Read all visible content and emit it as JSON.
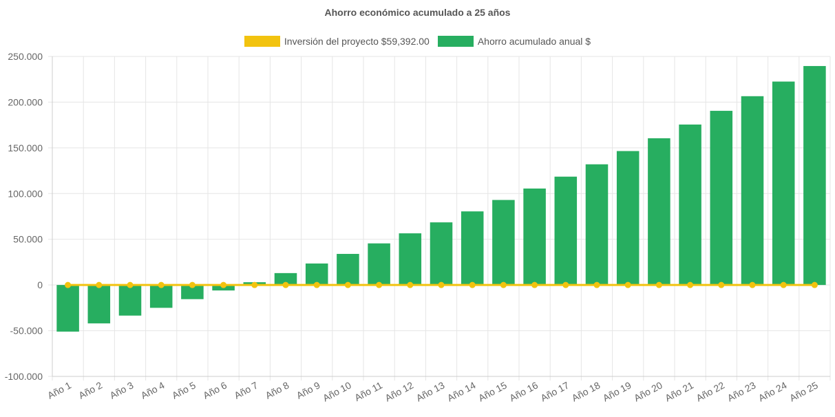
{
  "chart_data": {
    "type": "bar",
    "title": "Ahorro económico acumulado a 25 años",
    "categories": [
      "Año 1",
      "Año 2",
      "Año 3",
      "Año 4",
      "Año 5",
      "Año 6",
      "Año 7",
      "Año 8",
      "Año 9",
      "Año 10",
      "Año 11",
      "Año 12",
      "Año 13",
      "Año 14",
      "Año 15",
      "Año 16",
      "Año 17",
      "Año 18",
      "Año 19",
      "Año 20",
      "Año 21",
      "Año 22",
      "Año 23",
      "Año 24",
      "Año 25"
    ],
    "series": [
      {
        "name": "Inversión del proyecto $59,392.00",
        "type": "line",
        "color": "#f2c30f",
        "values": [
          0,
          0,
          0,
          0,
          0,
          0,
          0,
          0,
          0,
          0,
          0,
          0,
          0,
          0,
          0,
          0,
          0,
          0,
          0,
          0,
          0,
          0,
          0,
          0,
          0
        ]
      },
      {
        "name": "Ahorro acumulado anual $",
        "type": "bar",
        "color": "#27ae60",
        "values": [
          -51000,
          -42000,
          -33500,
          -25000,
          -15500,
          -6000,
          3000,
          13000,
          23500,
          34000,
          45500,
          56500,
          68500,
          80500,
          93000,
          105500,
          118500,
          132000,
          146500,
          160500,
          175500,
          190500,
          206500,
          222500,
          239500
        ]
      }
    ],
    "yticks": [
      "250.000",
      "200.000",
      "150.000",
      "100.000",
      "50.000",
      "0",
      "-50.000",
      "-100.000"
    ],
    "ylim": [
      -100000,
      250000
    ],
    "grid": true,
    "legend_position": "top"
  }
}
